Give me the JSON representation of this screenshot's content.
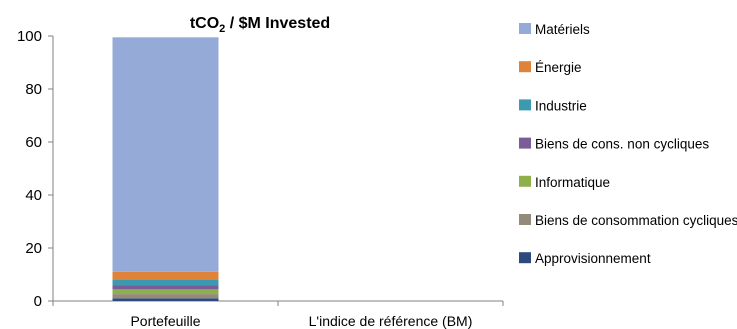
{
  "chart_data": {
    "type": "bar",
    "stacked": true,
    "title_main": "tCO",
    "title_sub": "2",
    "title_rest": " / $M Invested",
    "categories": [
      "Portefeuille",
      "L'indice de référence (BM)"
    ],
    "yticks": [
      "0",
      "20",
      "40",
      "60",
      "80",
      "100"
    ],
    "ylim": [
      0,
      100
    ],
    "grid": false,
    "legend_position": "right",
    "series": [
      {
        "name": "Approvisionnement",
        "color": "#2E4A7D",
        "values": [
          1.0,
          0
        ]
      },
      {
        "name": "Biens de consommation cycliques",
        "color": "#948A7A",
        "values": [
          1.6,
          0
        ]
      },
      {
        "name": "Informatique",
        "color": "#8DB04D",
        "values": [
          1.8,
          0
        ]
      },
      {
        "name": "Biens de cons. non cycliques",
        "color": "#7A5C99",
        "values": [
          1.6,
          0
        ]
      },
      {
        "name": "Industrie",
        "color": "#3C99B0",
        "values": [
          2.2,
          0
        ]
      },
      {
        "name": "Énergie",
        "color": "#E0833A",
        "values": [
          2.8,
          0
        ]
      },
      {
        "name": "Matériels",
        "color": "#95AAD6",
        "values": [
          88.5,
          0
        ]
      }
    ],
    "legend_order": [
      "Matériels",
      "Énergie",
      "Industrie",
      "Biens de cons. non cycliques",
      "Informatique",
      "Biens de consommation cycliques",
      "Approvisionnement"
    ]
  }
}
